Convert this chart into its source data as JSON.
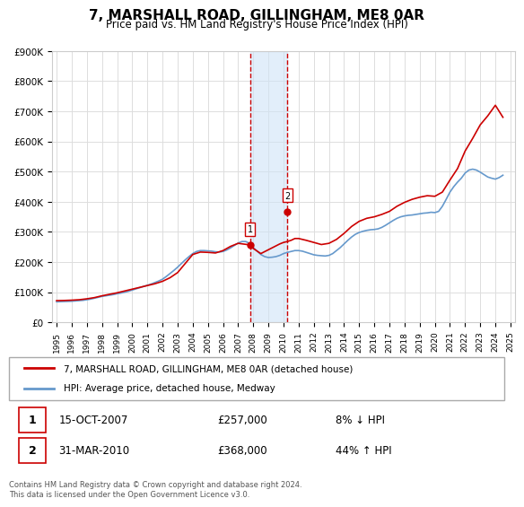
{
  "title": "7, MARSHALL ROAD, GILLINGHAM, ME8 0AR",
  "subtitle": "Price paid vs. HM Land Registry's House Price Index (HPI)",
  "title_fontsize": 11,
  "subtitle_fontsize": 9,
  "hpi_years": [
    1995,
    1995.25,
    1995.5,
    1995.75,
    1996,
    1996.25,
    1996.5,
    1996.75,
    1997,
    1997.25,
    1997.5,
    1997.75,
    1998,
    1998.25,
    1998.5,
    1998.75,
    1999,
    1999.25,
    1999.5,
    1999.75,
    2000,
    2000.25,
    2000.5,
    2000.75,
    2001,
    2001.25,
    2001.5,
    2001.75,
    2002,
    2002.25,
    2002.5,
    2002.75,
    2003,
    2003.25,
    2003.5,
    2003.75,
    2004,
    2004.25,
    2004.5,
    2004.75,
    2005,
    2005.25,
    2005.5,
    2005.75,
    2006,
    2006.25,
    2006.5,
    2006.75,
    2007,
    2007.25,
    2007.5,
    2007.75,
    2008,
    2008.25,
    2008.5,
    2008.75,
    2009,
    2009.25,
    2009.5,
    2009.75,
    2010,
    2010.25,
    2010.5,
    2010.75,
    2011,
    2011.25,
    2011.5,
    2011.75,
    2012,
    2012.25,
    2012.5,
    2012.75,
    2013,
    2013.25,
    2013.5,
    2013.75,
    2014,
    2014.25,
    2014.5,
    2014.75,
    2015,
    2015.25,
    2015.5,
    2015.75,
    2016,
    2016.25,
    2016.5,
    2016.75,
    2017,
    2017.25,
    2017.5,
    2017.75,
    2018,
    2018.25,
    2018.5,
    2018.75,
    2019,
    2019.25,
    2019.5,
    2019.75,
    2020,
    2020.25,
    2020.5,
    2020.75,
    2021,
    2021.25,
    2021.5,
    2021.75,
    2022,
    2022.25,
    2022.5,
    2022.75,
    2023,
    2023.25,
    2023.5,
    2023.75,
    2024,
    2024.25,
    2024.5
  ],
  "hpi_values": [
    68000,
    68500,
    69000,
    69500,
    70000,
    71000,
    72000,
    73000,
    75000,
    77000,
    80000,
    83000,
    86000,
    88000,
    90000,
    92000,
    95000,
    97000,
    100000,
    103000,
    107000,
    111000,
    115000,
    119000,
    123000,
    127000,
    132000,
    137000,
    143000,
    152000,
    162000,
    172000,
    183000,
    195000,
    207000,
    218000,
    228000,
    235000,
    238000,
    238000,
    237000,
    236000,
    234000,
    233000,
    235000,
    240000,
    247000,
    255000,
    263000,
    268000,
    268000,
    262000,
    248000,
    236000,
    225000,
    218000,
    215000,
    216000,
    218000,
    222000,
    228000,
    232000,
    235000,
    238000,
    238000,
    236000,
    232000,
    228000,
    224000,
    222000,
    221000,
    220000,
    222000,
    228000,
    238000,
    248000,
    260000,
    272000,
    283000,
    292000,
    298000,
    302000,
    305000,
    307000,
    308000,
    310000,
    315000,
    322000,
    330000,
    338000,
    345000,
    350000,
    353000,
    355000,
    356000,
    358000,
    360000,
    362000,
    363000,
    365000,
    364000,
    368000,
    385000,
    408000,
    432000,
    450000,
    465000,
    478000,
    495000,
    505000,
    508000,
    505000,
    498000,
    490000,
    482000,
    478000,
    475000,
    480000,
    488000
  ],
  "red_years": [
    1995,
    1995.5,
    1996,
    1996.5,
    1997,
    1997.5,
    1998,
    1998.5,
    1999,
    1999.5,
    2000,
    2000.5,
    2001,
    2001.5,
    2002,
    2002.5,
    2003,
    2003.5,
    2004,
    2004.5,
    2005,
    2005.5,
    2006,
    2006.5,
    2007,
    2007.75,
    2008,
    2008.5,
    2009.75,
    2010,
    2010.25,
    2010.5,
    2010.75,
    2011,
    2011.5,
    2012,
    2012.5,
    2013,
    2013.5,
    2014,
    2014.5,
    2015,
    2015.5,
    2016,
    2016.5,
    2017,
    2017.5,
    2018,
    2018.5,
    2019,
    2019.5,
    2020,
    2020.5,
    2021,
    2021.5,
    2022,
    2022.5,
    2023,
    2023.5,
    2024,
    2024.25,
    2024.5
  ],
  "red_values": [
    72000,
    72500,
    73500,
    75000,
    78000,
    82000,
    88000,
    93000,
    98000,
    104000,
    110000,
    116000,
    122000,
    128000,
    136000,
    148000,
    165000,
    195000,
    225000,
    233000,
    232000,
    230000,
    238000,
    252000,
    262000,
    257000,
    245000,
    228000,
    260000,
    265000,
    268000,
    272000,
    278000,
    278000,
    272000,
    265000,
    258000,
    262000,
    275000,
    295000,
    318000,
    335000,
    345000,
    350000,
    358000,
    368000,
    385000,
    398000,
    408000,
    415000,
    420000,
    418000,
    432000,
    472000,
    510000,
    568000,
    610000,
    655000,
    685000,
    720000,
    700000,
    680000
  ],
  "sale1_x": 2007.79,
  "sale1_y": 257000,
  "sale1_label": "1",
  "sale2_x": 2010.25,
  "sale2_y": 368000,
  "sale2_label": "2",
  "shade_x1": 2007.79,
  "shade_x2": 2010.25,
  "ylim": [
    0,
    900000
  ],
  "yticks": [
    0,
    100000,
    200000,
    300000,
    400000,
    500000,
    600000,
    700000,
    800000,
    900000
  ],
  "ytick_labels": [
    "£0",
    "£100K",
    "£200K",
    "£300K",
    "£400K",
    "£500K",
    "£600K",
    "£700K",
    "£800K",
    "£900K"
  ],
  "xtick_years": [
    1995,
    1996,
    1997,
    1998,
    1999,
    2000,
    2001,
    2002,
    2003,
    2004,
    2005,
    2006,
    2007,
    2008,
    2009,
    2010,
    2011,
    2012,
    2013,
    2014,
    2015,
    2016,
    2017,
    2018,
    2019,
    2020,
    2021,
    2022,
    2023,
    2024,
    2025
  ],
  "red_color": "#cc0000",
  "blue_color": "#6699cc",
  "shade_color": "#d0e4f7",
  "shade_alpha": 0.6,
  "dashed_color": "#cc0000",
  "marker_color": "#cc0000",
  "legend_entries": [
    "7, MARSHALL ROAD, GILLINGHAM, ME8 0AR (detached house)",
    "HPI: Average price, detached house, Medway"
  ],
  "sale_rows": [
    {
      "num": "1",
      "date": "15-OCT-2007",
      "price": "£257,000",
      "hpi": "8% ↓ HPI"
    },
    {
      "num": "2",
      "date": "31-MAR-2010",
      "price": "£368,000",
      "hpi": "44% ↑ HPI"
    }
  ],
  "footer": "Contains HM Land Registry data © Crown copyright and database right 2024.\nThis data is licensed under the Open Government Licence v3.0.",
  "bg_color": "#ffffff",
  "plot_bg_color": "#ffffff",
  "grid_color": "#dddddd"
}
